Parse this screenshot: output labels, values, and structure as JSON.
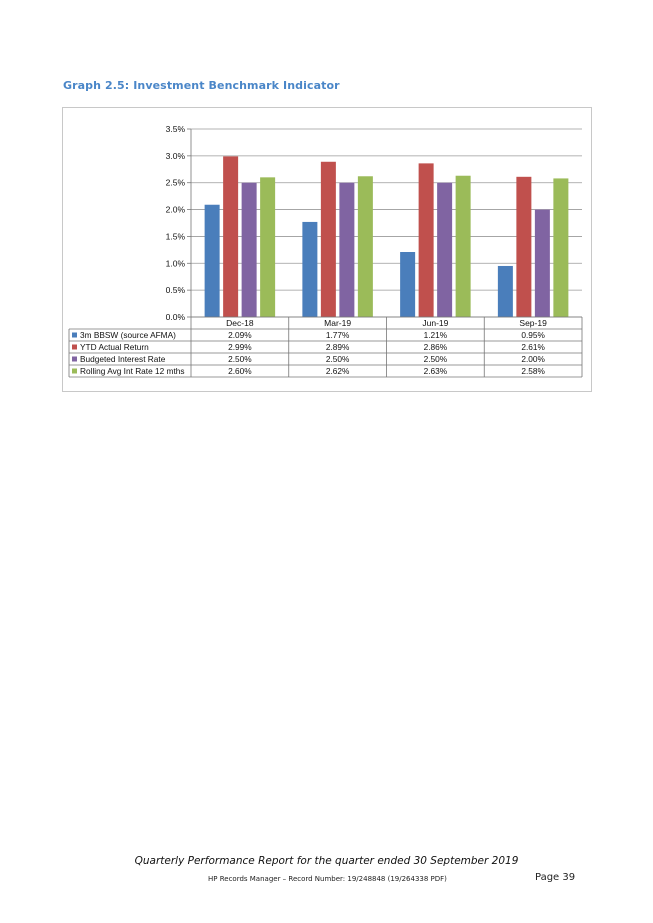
{
  "heading": "Graph 2.5:  Investment Benchmark Indicator",
  "chart_data": {
    "type": "bar",
    "categories": [
      "Dec-18",
      "Mar-19",
      "Jun-19",
      "Sep-19"
    ],
    "series": [
      {
        "name": "3m BBSW (source AFMA)",
        "color": "#4a7ebb",
        "values": [
          2.09,
          1.77,
          1.21,
          0.95
        ],
        "labels": [
          "2.09%",
          "1.77%",
          "1.21%",
          "0.95%"
        ]
      },
      {
        "name": "YTD Actual Return",
        "color": "#c0504d",
        "values": [
          2.99,
          2.89,
          2.86,
          2.61
        ],
        "labels": [
          "2.99%",
          "2.89%",
          "2.86%",
          "2.61%"
        ]
      },
      {
        "name": "Budgeted Interest Rate",
        "color": "#8064a2",
        "values": [
          2.5,
          2.5,
          2.5,
          2.0
        ],
        "labels": [
          "2.50%",
          "2.50%",
          "2.50%",
          "2.00%"
        ]
      },
      {
        "name": "Rolling Avg Int Rate 12 mths",
        "color": "#9bbb59",
        "values": [
          2.6,
          2.62,
          2.63,
          2.58
        ],
        "labels": [
          "2.60%",
          "2.62%",
          "2.63%",
          "2.58%"
        ]
      }
    ],
    "ylim": [
      0,
      3.5
    ],
    "yticks": [
      0,
      0.5,
      1.0,
      1.5,
      2.0,
      2.5,
      3.0,
      3.5
    ],
    "ytick_labels": [
      "0.0%",
      "0.5%",
      "1.0%",
      "1.5%",
      "2.0%",
      "2.5%",
      "3.0%",
      "3.5%"
    ],
    "grid": true,
    "legend": "data-table"
  },
  "footer": {
    "title": "Quarterly Performance Report for the quarter ended 30 September 2019",
    "record": "HP Records Manager – Record Number: 19/248848 (19/264338 PDF)",
    "page": "Page 39"
  }
}
